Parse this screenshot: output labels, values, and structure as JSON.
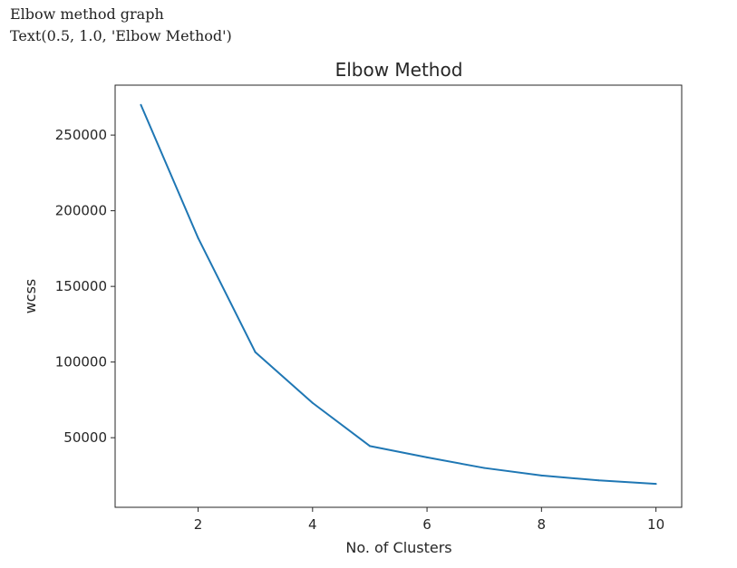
{
  "cell": {
    "caption": "Elbow method graph",
    "output_repr": "Text(0.5, 1.0, 'Elbow Method')"
  },
  "chart_data": {
    "type": "line",
    "title": "Elbow Method",
    "xlabel": "No. of Clusters",
    "ylabel": "wcss",
    "x": [
      1,
      2,
      3,
      4,
      5,
      6,
      7,
      8,
      9,
      10
    ],
    "series": [
      {
        "values": [
          270000,
          182000,
          106500,
          73000,
          44500,
          37000,
          30000,
          25000,
          21800,
          19500
        ]
      }
    ],
    "xlim": [
      0.55,
      10.45
    ],
    "ylim": [
      4000,
      283000
    ],
    "xticks": [
      2,
      4,
      6,
      8,
      10
    ],
    "yticks": [
      50000,
      100000,
      150000,
      200000,
      250000
    ],
    "xtick_labels": [
      "2",
      "4",
      "6",
      "8",
      "10"
    ],
    "ytick_labels": [
      "50000",
      "100000",
      "150000",
      "200000",
      "250000"
    ],
    "grid": false,
    "line_color": "#1f77b4"
  }
}
